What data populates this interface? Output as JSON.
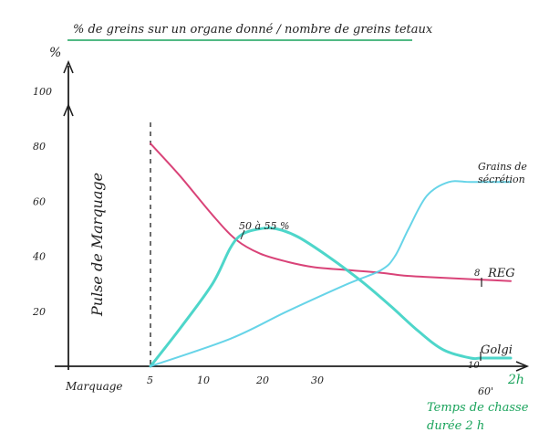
{
  "chart_data": {
    "type": "line",
    "title": "% de greins sur un organe donné / nombre de greins tetaux",
    "ylabel": "%",
    "ylim": [
      0,
      100
    ],
    "yticks": [
      "100",
      "80",
      "60",
      "40",
      "20"
    ],
    "xlim": [
      0,
      62
    ],
    "xticks": [
      "5",
      "10",
      "20",
      "30",
      "60'"
    ],
    "x_origin_label": "Marquage",
    "x_end_label": "2h",
    "time_caption_line1": "Temps de chasse",
    "time_caption_line2": "durée 2 h",
    "pulse_label": "Pulse de Marquage",
    "peak_annotation": "50 à 55 %",
    "rer_tick_label": "8",
    "golgi_tick_label": "10",
    "series": [
      {
        "name": "REG",
        "color": "#d6336c",
        "x": [
          5,
          8,
          12,
          16,
          20,
          25,
          30,
          35,
          40,
          45,
          50,
          55,
          60,
          62
        ],
        "y": [
          81,
          69,
          55,
          46,
          41,
          38,
          36,
          35,
          34,
          33,
          32.5,
          32,
          31.5,
          31
        ]
      },
      {
        "name": "Golgi",
        "color": "#3fd3c6",
        "x": [
          5,
          8,
          12,
          15,
          17,
          20,
          23,
          27,
          32,
          37,
          42,
          48,
          53,
          58,
          60,
          62
        ],
        "y": [
          0,
          14,
          30,
          43,
          48,
          50,
          50,
          47,
          40,
          31,
          22,
          13,
          6,
          3,
          3,
          3
        ]
      },
      {
        "name": "Grains de sécrétion",
        "color": "#5ad0e6",
        "x": [
          5,
          15,
          25,
          35,
          40,
          43,
          46,
          50,
          54,
          58,
          62
        ],
        "y": [
          0,
          10,
          20,
          30,
          35,
          40,
          50,
          62,
          67,
          67,
          67
        ]
      }
    ]
  },
  "colors": {
    "axis": "#1f1f1f",
    "title_underline": "#19a35b",
    "caption": "#19a35b",
    "dashed_marker": "#1f1f1f"
  }
}
